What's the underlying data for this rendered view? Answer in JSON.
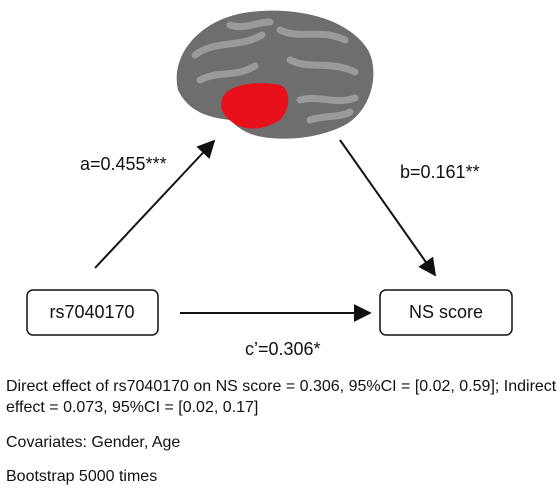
{
  "nodes": [
    {
      "label": "rs7040170"
    },
    {
      "label": "NS score"
    }
  ],
  "edges": [
    {
      "label": "a=0.455***"
    },
    {
      "label": "b=0.161**"
    },
    {
      "label": "c’=0.306*"
    }
  ],
  "notes": [
    "Direct effect of rs7040170 on NS score = 0.306, 95%CI = [0.02, 0.59]; Indirect effect = 0.073, 95%CI = [0.02, 0.17]",
    "Covariates: Gender, Age",
    "Bootstrap 5000 times"
  ]
}
